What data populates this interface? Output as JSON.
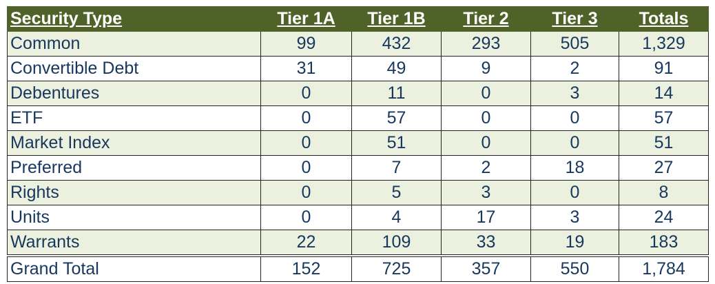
{
  "table": {
    "header": [
      "Security Type",
      "Tier 1A",
      "Tier 1B",
      "Tier 2",
      "Tier 3",
      "Totals"
    ],
    "rows": [
      [
        "Common",
        "99",
        "432",
        "293",
        "505",
        "1,329"
      ],
      [
        "Convertible Debt",
        "31",
        "49",
        "9",
        "2",
        "91"
      ],
      [
        "Debentures",
        "0",
        "11",
        "0",
        "3",
        "14"
      ],
      [
        "ETF",
        "0",
        "57",
        "0",
        "0",
        "57"
      ],
      [
        "Market Index",
        "0",
        "51",
        "0",
        "0",
        "51"
      ],
      [
        "Preferred",
        "0",
        "7",
        "2",
        "18",
        "27"
      ],
      [
        "Rights",
        "0",
        "5",
        "3",
        "0",
        "8"
      ],
      [
        "Units",
        "0",
        "4",
        "17",
        "3",
        "24"
      ],
      [
        "Warrants",
        "22",
        "109",
        "33",
        "19",
        "183"
      ]
    ],
    "total": [
      "Grand Total",
      "152",
      "725",
      "357",
      "550",
      "1,784"
    ]
  }
}
